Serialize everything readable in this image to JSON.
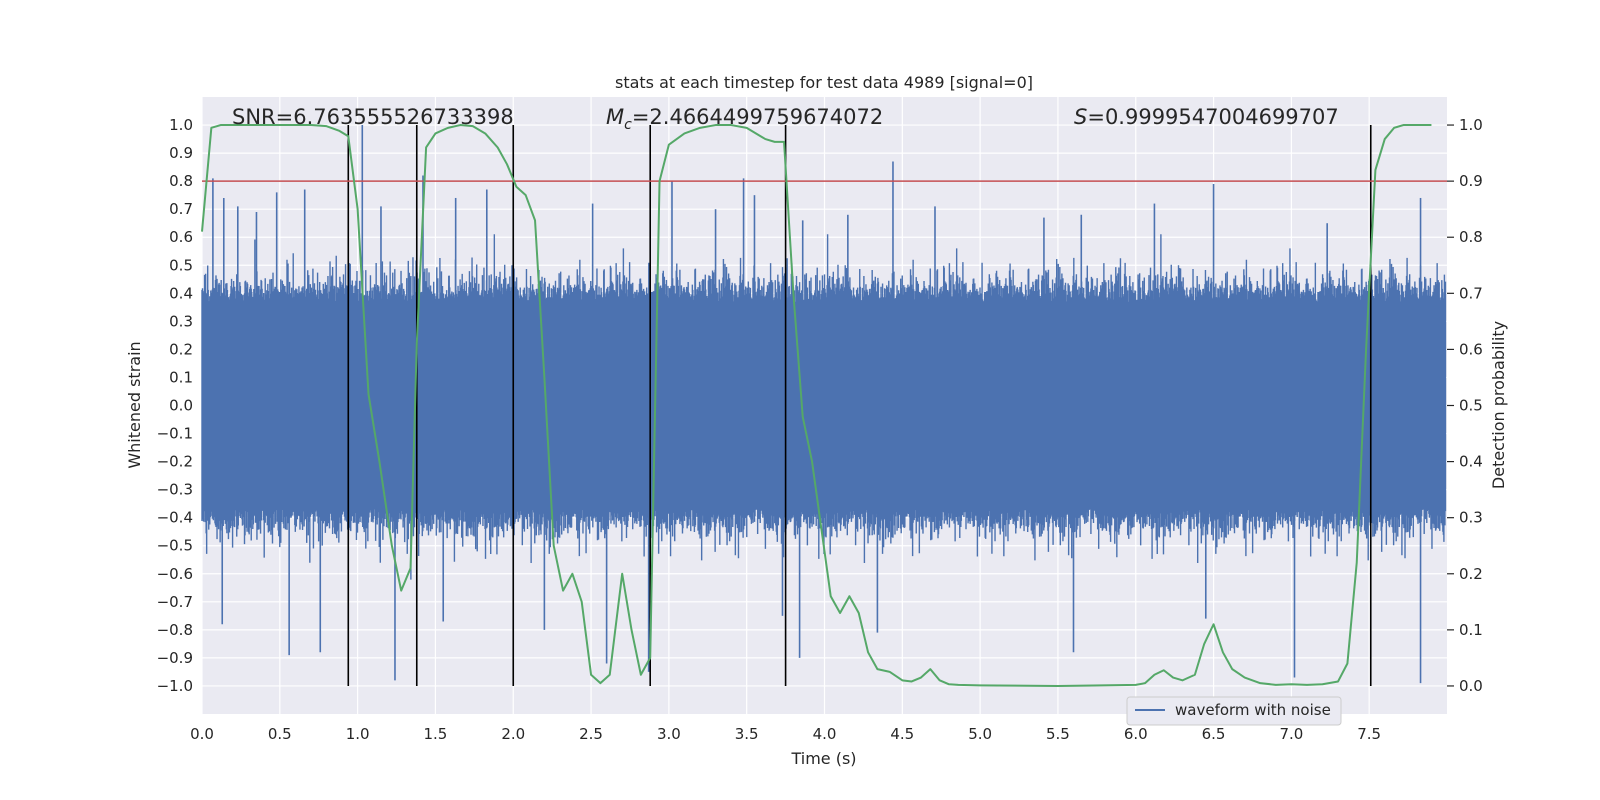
{
  "chart_data": {
    "type": "line",
    "title": "stats at each timestep for test data 4989 [signal=0]",
    "xlabel": "Time (s)",
    "ylabel": "Whitened strain",
    "y2label": "Detection probability",
    "xlim": [
      0.0,
      8.0
    ],
    "ylim": [
      -1.1,
      1.1
    ],
    "y2lim": [
      -0.05,
      1.05
    ],
    "xticks": [
      "0.0",
      "0.5",
      "1.0",
      "1.5",
      "2.0",
      "2.5",
      "3.0",
      "3.5",
      "4.0",
      "4.5",
      "5.0",
      "5.5",
      "6.0",
      "6.5",
      "7.0",
      "7.5"
    ],
    "yticks": [
      "−1.0",
      "−0.9",
      "−0.8",
      "−0.7",
      "−0.6",
      "−0.5",
      "−0.4",
      "−0.3",
      "−0.2",
      "−0.1",
      "0.0",
      "0.1",
      "0.2",
      "0.3",
      "0.4",
      "0.5",
      "0.6",
      "0.7",
      "0.8",
      "0.9",
      "1.0"
    ],
    "y2ticks": [
      "0.0",
      "0.1",
      "0.2",
      "0.3",
      "0.4",
      "0.5",
      "0.6",
      "0.7",
      "0.8",
      "0.9",
      "1.0"
    ],
    "annotations": {
      "snr": "SNR=6.763555526733398",
      "mc_symbol": "M",
      "mc_sub": "c",
      "mc_value": "=2.4664499759674072",
      "s_symbol": "S",
      "s_value": "=0.9999547004699707"
    },
    "threshold": {
      "axis": "right",
      "value": 0.9,
      "color": "#c44e52"
    },
    "vertical_lines": [
      0.94,
      1.38,
      2.0,
      2.88,
      3.75,
      7.51
    ],
    "legend": {
      "label": "waveform with noise",
      "location": "lower-right"
    },
    "series": [
      {
        "name": "waveform with noise",
        "axis": "left",
        "color": "#4c72b0",
        "noise_envelope": {
          "typical_amplitude": 0.45,
          "peaks": [
            {
              "x": 0.07,
              "y": 0.81
            },
            {
              "x": 0.14,
              "y": 0.74
            },
            {
              "x": 0.23,
              "y": 0.71
            },
            {
              "x": 0.35,
              "y": 0.69
            },
            {
              "x": 0.48,
              "y": 0.76
            },
            {
              "x": 0.66,
              "y": 0.77
            },
            {
              "x": 1.03,
              "y": 1.0
            },
            {
              "x": 1.15,
              "y": 0.71
            },
            {
              "x": 1.42,
              "y": 0.82
            },
            {
              "x": 1.63,
              "y": 0.74
            },
            {
              "x": 1.83,
              "y": 0.77
            },
            {
              "x": 2.51,
              "y": 0.72
            },
            {
              "x": 3.02,
              "y": 0.8
            },
            {
              "x": 3.3,
              "y": 0.7
            },
            {
              "x": 3.48,
              "y": 0.81
            },
            {
              "x": 3.55,
              "y": 0.75
            },
            {
              "x": 3.86,
              "y": 0.66
            },
            {
              "x": 4.15,
              "y": 0.68
            },
            {
              "x": 4.44,
              "y": 0.87
            },
            {
              "x": 4.71,
              "y": 0.71
            },
            {
              "x": 5.41,
              "y": 0.67
            },
            {
              "x": 5.65,
              "y": 0.68
            },
            {
              "x": 6.12,
              "y": 0.72
            },
            {
              "x": 6.5,
              "y": 0.79
            },
            {
              "x": 7.23,
              "y": 0.65
            },
            {
              "x": 7.83,
              "y": 0.74
            }
          ],
          "troughs": [
            {
              "x": 0.13,
              "y": -0.78
            },
            {
              "x": 0.56,
              "y": -0.89
            },
            {
              "x": 0.76,
              "y": -0.88
            },
            {
              "x": 1.24,
              "y": -0.98
            },
            {
              "x": 1.55,
              "y": -0.77
            },
            {
              "x": 2.2,
              "y": -0.8
            },
            {
              "x": 2.6,
              "y": -0.92
            },
            {
              "x": 2.87,
              "y": -0.95
            },
            {
              "x": 3.73,
              "y": -0.75
            },
            {
              "x": 3.84,
              "y": -0.9
            },
            {
              "x": 4.34,
              "y": -0.81
            },
            {
              "x": 5.6,
              "y": -0.88
            },
            {
              "x": 6.45,
              "y": -0.76
            },
            {
              "x": 7.02,
              "y": -0.97
            },
            {
              "x": 7.83,
              "y": -0.99
            }
          ]
        }
      },
      {
        "name": "detection probability",
        "axis": "right",
        "color": "#55a868",
        "x": [
          0.0,
          0.06,
          0.12,
          0.2,
          0.3,
          0.4,
          0.5,
          0.6,
          0.7,
          0.8,
          0.88,
          0.94,
          1.0,
          1.07,
          1.14,
          1.22,
          1.28,
          1.34,
          1.38,
          1.44,
          1.5,
          1.58,
          1.66,
          1.74,
          1.82,
          1.9,
          1.96,
          2.02,
          2.08,
          2.14,
          2.2,
          2.26,
          2.32,
          2.38,
          2.44,
          2.5,
          2.56,
          2.62,
          2.7,
          2.76,
          2.82,
          2.88,
          2.94,
          3.0,
          3.1,
          3.2,
          3.3,
          3.4,
          3.5,
          3.56,
          3.62,
          3.68,
          3.74,
          3.8,
          3.86,
          3.92,
          3.98,
          4.04,
          4.1,
          4.16,
          4.22,
          4.28,
          4.34,
          4.42,
          4.5,
          4.56,
          4.62,
          4.68,
          4.74,
          4.8,
          4.86,
          5.0,
          5.5,
          6.0,
          6.06,
          6.12,
          6.18,
          6.24,
          6.3,
          6.38,
          6.44,
          6.5,
          6.56,
          6.62,
          6.7,
          6.8,
          6.9,
          7.0,
          7.1,
          7.2,
          7.3,
          7.36,
          7.42,
          7.48,
          7.54,
          7.6,
          7.66,
          7.72,
          7.8,
          7.9
        ],
        "y": [
          0.81,
          0.995,
          1.0,
          1.0,
          1.0,
          1.0,
          1.0,
          1.0,
          1.0,
          0.998,
          0.99,
          0.98,
          0.85,
          0.52,
          0.4,
          0.25,
          0.17,
          0.21,
          0.61,
          0.96,
          0.985,
          0.995,
          1.0,
          0.998,
          0.985,
          0.96,
          0.93,
          0.89,
          0.875,
          0.83,
          0.55,
          0.25,
          0.17,
          0.2,
          0.15,
          0.02,
          0.005,
          0.02,
          0.2,
          0.1,
          0.02,
          0.05,
          0.9,
          0.965,
          0.985,
          0.995,
          1.0,
          1.0,
          0.995,
          0.985,
          0.975,
          0.97,
          0.97,
          0.7,
          0.48,
          0.4,
          0.28,
          0.16,
          0.13,
          0.16,
          0.13,
          0.06,
          0.03,
          0.025,
          0.01,
          0.008,
          0.015,
          0.03,
          0.01,
          0.003,
          0.002,
          0.001,
          0.0,
          0.002,
          0.005,
          0.02,
          0.028,
          0.015,
          0.01,
          0.02,
          0.075,
          0.11,
          0.06,
          0.03,
          0.015,
          0.005,
          0.002,
          0.003,
          0.002,
          0.003,
          0.008,
          0.04,
          0.22,
          0.6,
          0.92,
          0.975,
          0.995,
          1.0,
          1.0,
          1.0
        ]
      }
    ]
  }
}
